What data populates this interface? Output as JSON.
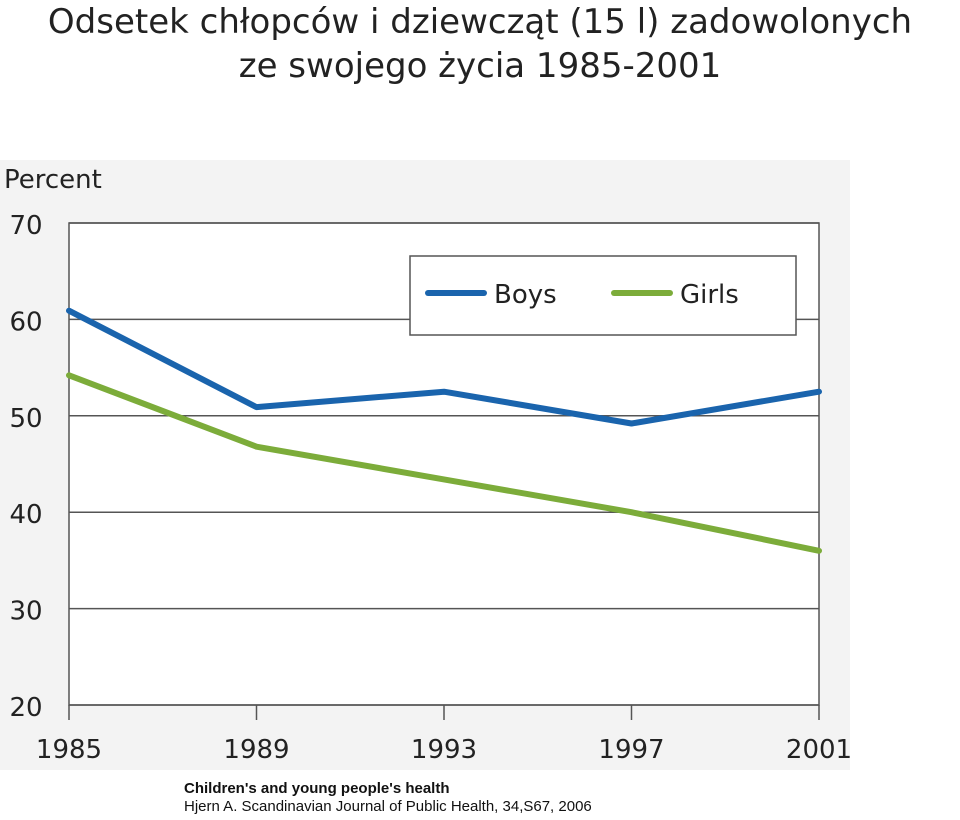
{
  "title_line1": "Odsetek chłopców i dziewcząt (15 l) zadowolonych",
  "title_line2": "ze swojego życia 1985-2001",
  "caption": {
    "line1": "Children's and young people's health",
    "line2": "Hjern A. Scandinavian Journal of Public Health, 34,S67, 2006"
  },
  "chart_data": {
    "type": "line",
    "ylabel": "Percent",
    "xlabel": "",
    "x": [
      1985,
      1989,
      1993,
      1997,
      2001
    ],
    "ylim": [
      20,
      70
    ],
    "yticks": [
      20,
      30,
      40,
      50,
      60,
      70
    ],
    "grid": true,
    "legend_position": "top-right",
    "series": [
      {
        "name": "Boys",
        "color": "#1a64ad",
        "values": [
          60.9,
          50.9,
          52.5,
          49.2,
          52.5
        ]
      },
      {
        "name": "Girls",
        "color": "#7cac3a",
        "values": [
          54.2,
          46.8,
          43.4,
          40.0,
          36.0
        ]
      }
    ]
  }
}
